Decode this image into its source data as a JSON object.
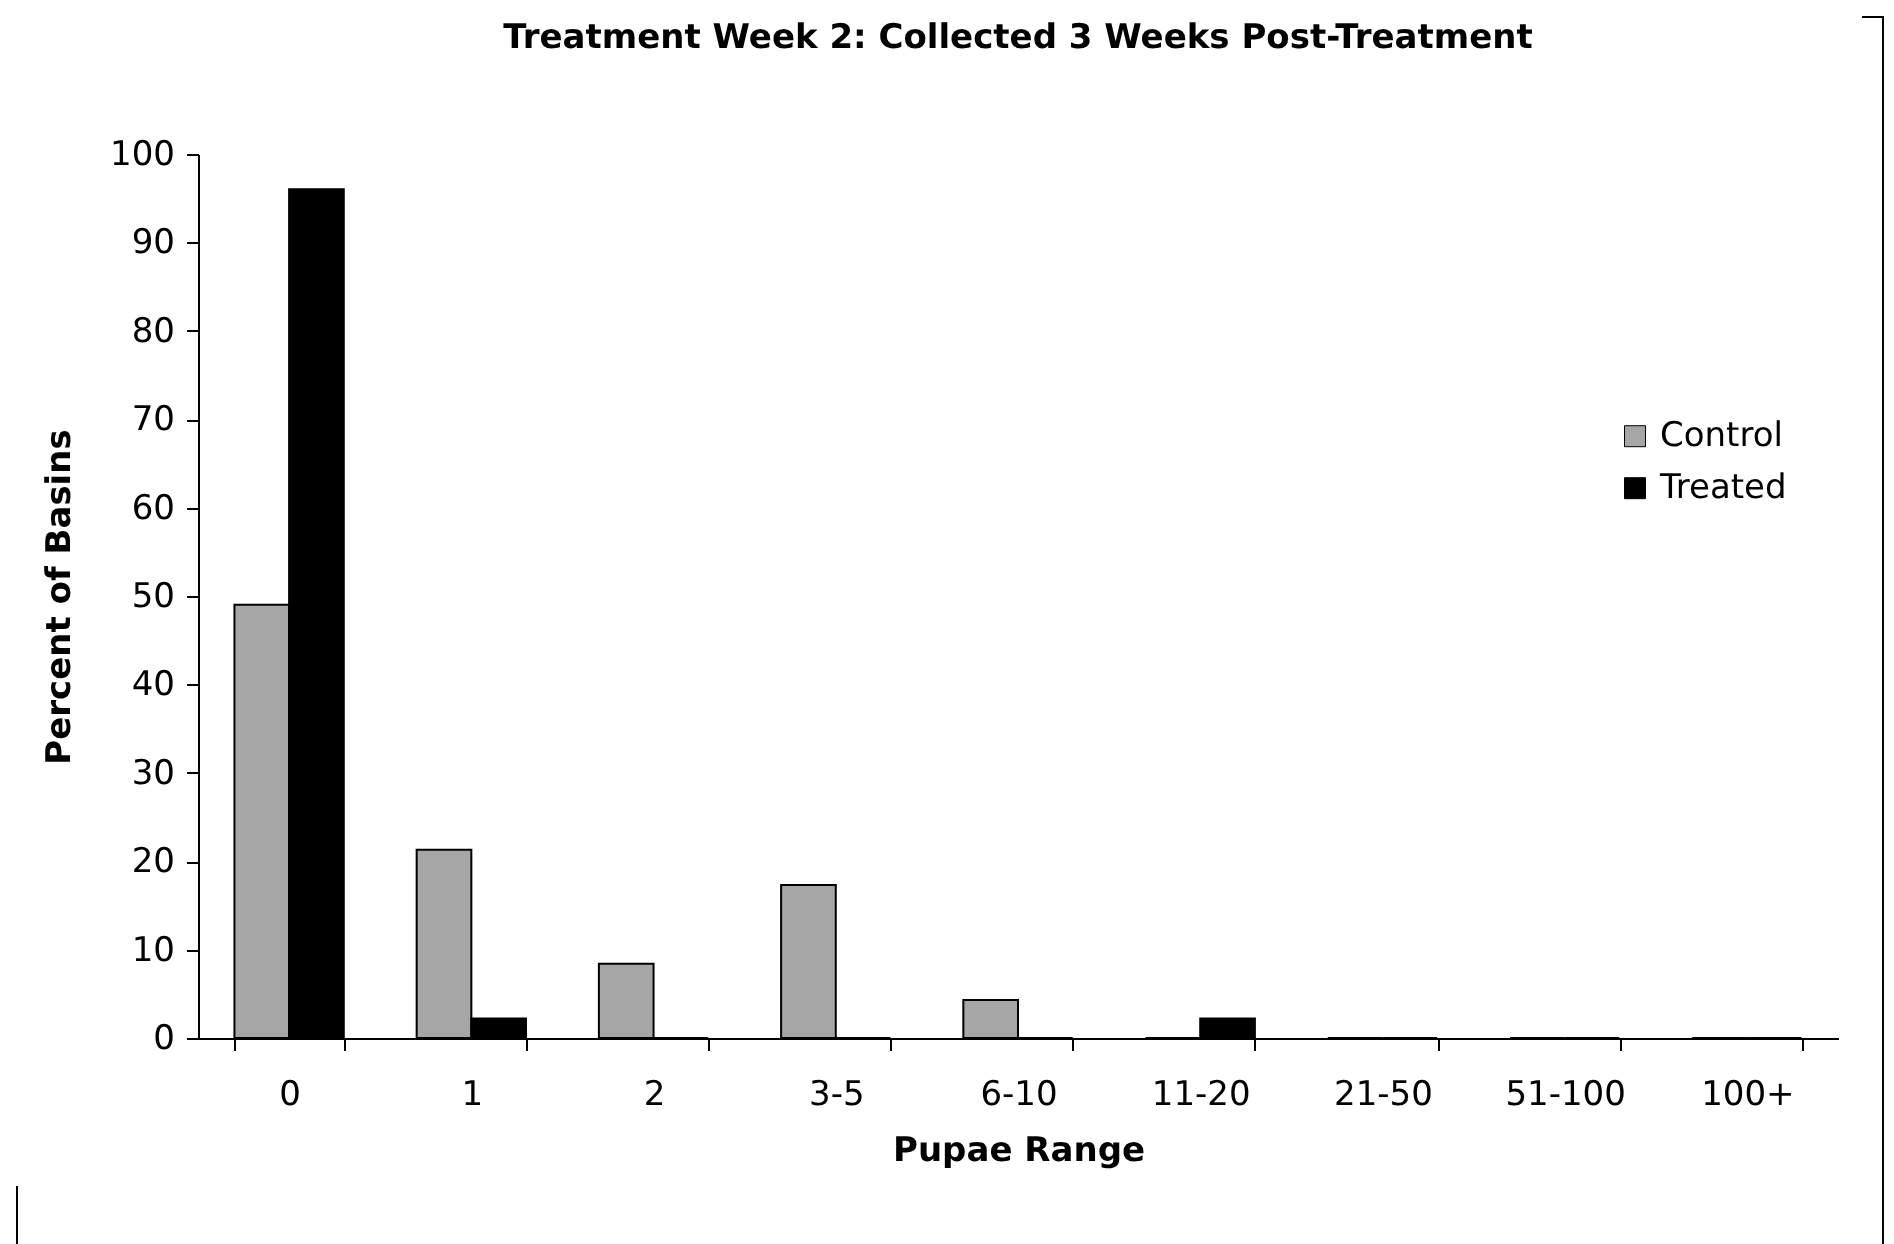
{
  "chart_data": {
    "type": "bar",
    "title": "Treatment Week 2: Collected 3 Weeks Post-Treatment",
    "xlabel": "Pupae Range",
    "ylabel": "Percent of Basins",
    "categories": [
      "0",
      "1",
      "2",
      "3-5",
      "6-10",
      "11-20",
      "21-50",
      "51-100",
      "100+"
    ],
    "series": [
      {
        "name": "Control",
        "color": "#a6a6a6",
        "values": [
          49,
          21.3,
          8.4,
          17.3,
          4.3,
          0,
          0,
          0,
          0
        ]
      },
      {
        "name": "Treated",
        "color": "#000000",
        "values": [
          96,
          2.2,
          0,
          0,
          0,
          2.2,
          0,
          0,
          0
        ]
      }
    ],
    "ylim": [
      0,
      100
    ],
    "yticks": [
      0,
      10,
      20,
      30,
      40,
      50,
      60,
      70,
      80,
      90,
      100
    ],
    "grid": false,
    "legend": "right"
  }
}
